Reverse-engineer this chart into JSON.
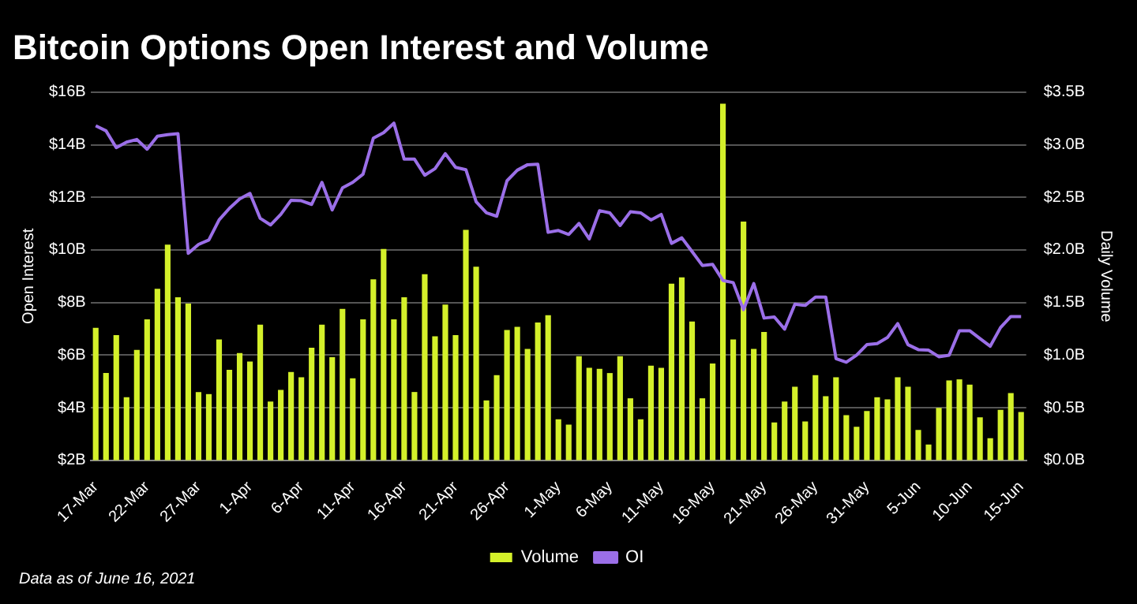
{
  "chart_data": {
    "type": "bar",
    "title": "Bitcoin Options Open Interest and Volume",
    "ylabel": "Open Interest",
    "y2label": "Daily Volume",
    "categories": [
      "17-Mar",
      null,
      null,
      null,
      null,
      "22-Mar",
      null,
      null,
      null,
      null,
      "27-Mar",
      null,
      null,
      null,
      null,
      "1-Apr",
      null,
      null,
      null,
      null,
      "6-Apr",
      null,
      null,
      null,
      null,
      "11-Apr",
      null,
      null,
      null,
      null,
      "16-Apr",
      null,
      null,
      null,
      null,
      "21-Apr",
      null,
      null,
      null,
      null,
      "26-Apr",
      null,
      null,
      null,
      null,
      "1-May",
      null,
      null,
      null,
      null,
      "6-May",
      null,
      null,
      null,
      null,
      "11-May",
      null,
      null,
      null,
      null,
      "16-May",
      null,
      null,
      null,
      null,
      "21-May",
      null,
      null,
      null,
      null,
      "26-May",
      null,
      null,
      null,
      null,
      "31-May",
      null,
      null,
      null,
      null,
      "5-Jun",
      null,
      null,
      null,
      null,
      "10-Jun",
      null,
      null,
      null,
      null,
      "15-Jun"
    ],
    "series": [
      {
        "name": "Volume",
        "axis": "y2",
        "color": "#d4f02a",
        "values": [
          1.26,
          0.83,
          1.19,
          0.6,
          1.05,
          1.34,
          1.63,
          2.05,
          1.55,
          1.49,
          0.65,
          0.63,
          1.15,
          0.86,
          1.02,
          0.94,
          1.29,
          0.56,
          0.67,
          0.84,
          0.79,
          1.07,
          1.29,
          0.98,
          1.44,
          0.78,
          1.34,
          1.72,
          2.01,
          1.34,
          1.55,
          0.65,
          1.77,
          1.18,
          1.48,
          1.19,
          2.19,
          1.84,
          0.57,
          0.81,
          1.24,
          1.27,
          1.06,
          1.31,
          1.38,
          0.39,
          0.34,
          0.99,
          0.88,
          0.87,
          0.83,
          0.99,
          0.59,
          0.39,
          0.9,
          0.88,
          1.68,
          1.74,
          1.32,
          0.59,
          0.92,
          3.39,
          1.15,
          2.27,
          1.06,
          1.22,
          0.36,
          0.56,
          0.7,
          0.37,
          0.81,
          0.61,
          0.79,
          0.43,
          0.32,
          0.47,
          0.6,
          0.58,
          0.79,
          0.7,
          0.29,
          0.15,
          0.5,
          0.76,
          0.77,
          0.72,
          0.41,
          0.21,
          0.48,
          0.64,
          0.46
        ]
      },
      {
        "name": "OI",
        "type": "line",
        "color": "#9b6fe8",
        "values": [
          14.72,
          14.53,
          13.89,
          14.1,
          14.2,
          13.83,
          14.32,
          14.38,
          14.42,
          9.87,
          10.21,
          10.38,
          11.14,
          11.58,
          11.94,
          12.15,
          11.2,
          10.95,
          11.35,
          11.89,
          11.87,
          11.73,
          12.57,
          11.52,
          12.36,
          12.57,
          12.88,
          14.25,
          14.46,
          14.82,
          13.45,
          13.45,
          12.84,
          13.09,
          13.66,
          13.14,
          13.05,
          11.83,
          11.41,
          11.28,
          12.63,
          13.03,
          13.24,
          13.26,
          10.67,
          10.74,
          10.59,
          11.01,
          10.42,
          11.49,
          11.41,
          10.93,
          11.45,
          11.41,
          11.14,
          11.35,
          10.25,
          10.46,
          9.94,
          9.41,
          9.45,
          8.84,
          8.76,
          7.73,
          8.72,
          7.41,
          7.45,
          6.99,
          7.94,
          7.89,
          8.21,
          8.21,
          5.87,
          5.73,
          6.0,
          6.4,
          6.44,
          6.67,
          7.2,
          6.4,
          6.21,
          6.19,
          5.94,
          6.0,
          6.93,
          6.93,
          6.63,
          6.34,
          7.05,
          7.47,
          7.47
        ]
      }
    ],
    "ylim": [
      2,
      16
    ],
    "yticks": [
      {
        "value": 2,
        "label": "$2B"
      },
      {
        "value": 4,
        "label": "$4B"
      },
      {
        "value": 6,
        "label": "$6B"
      },
      {
        "value": 8,
        "label": "$8B"
      },
      {
        "value": 10,
        "label": "$10B"
      },
      {
        "value": 12,
        "label": "$12B"
      },
      {
        "value": 14,
        "label": "$14B"
      },
      {
        "value": 16,
        "label": "$16B"
      }
    ],
    "y2lim": [
      0,
      3.5
    ],
    "y2ticks": [
      {
        "value": 0,
        "label": "$0.0B"
      },
      {
        "value": 0.5,
        "label": "$0.5B"
      },
      {
        "value": 1,
        "label": "$1.0B"
      },
      {
        "value": 1.5,
        "label": "$1.5B"
      },
      {
        "value": 2,
        "label": "$2.0B"
      },
      {
        "value": 2.5,
        "label": "$2.5B"
      },
      {
        "value": 3,
        "label": "$3.0B"
      },
      {
        "value": 3.5,
        "label": "$3.5B"
      }
    ],
    "grid": "y",
    "legend": "bottom",
    "marker": "none",
    "line_style": "solid",
    "annotations": [
      "Data as of June 16, 2021"
    ]
  }
}
